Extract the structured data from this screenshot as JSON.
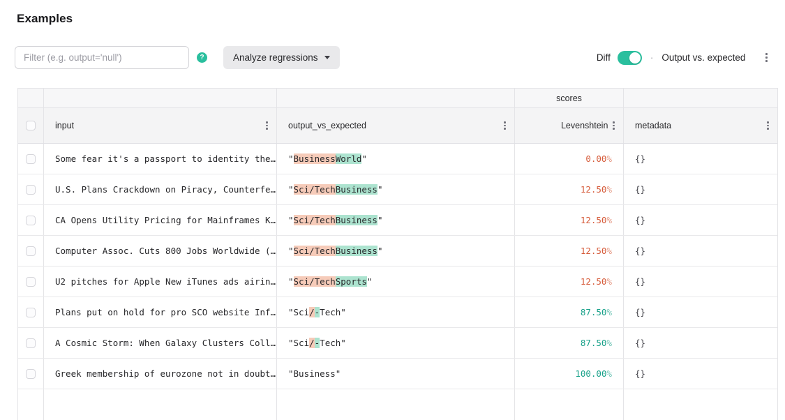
{
  "page": {
    "title": "Examples"
  },
  "toolbar": {
    "filter_placeholder": "Filter (e.g. output='null')",
    "help_glyph": "?",
    "analyze_button_label": "Analyze regressions",
    "diff_label": "Diff",
    "diff_toggle_on": true,
    "separator": "·",
    "view_label": "Output vs. expected"
  },
  "colors": {
    "accent": "#2abf9e",
    "score_low": "#d65b3a",
    "score_high": "#18a189",
    "removed_bg": "#f6cbb9",
    "added_bg": "#ace3cf"
  },
  "table": {
    "group_header": {
      "scores_label": "scores"
    },
    "columns": [
      {
        "key": "input",
        "label": "input"
      },
      {
        "key": "output_vs_expected",
        "label": "output_vs_expected"
      },
      {
        "key": "levenshtein",
        "label": "Levenshtein",
        "group": "scores"
      },
      {
        "key": "metadata",
        "label": "metadata"
      }
    ],
    "has_partial_row": true,
    "rows": [
      {
        "input": "Some fear it's a passport to identity the…",
        "output_segments": [
          {
            "t": "\"",
            "k": "plain"
          },
          {
            "t": "Business",
            "k": "removed"
          },
          {
            "t": "World",
            "k": "added"
          },
          {
            "t": "\"",
            "k": "plain"
          }
        ],
        "score": {
          "value": "0.00",
          "unit": "%",
          "kind": "low"
        },
        "metadata": "{}"
      },
      {
        "input": "U.S. Plans Crackdown on Piracy, Counterfe…",
        "output_segments": [
          {
            "t": "\"",
            "k": "plain"
          },
          {
            "t": "Sci/Tech",
            "k": "removed"
          },
          {
            "t": "Business",
            "k": "added"
          },
          {
            "t": "\"",
            "k": "plain"
          }
        ],
        "score": {
          "value": "12.50",
          "unit": "%",
          "kind": "low"
        },
        "metadata": "{}"
      },
      {
        "input": "CA Opens Utility Pricing for Mainframes K…",
        "output_segments": [
          {
            "t": "\"",
            "k": "plain"
          },
          {
            "t": "Sci/Tech",
            "k": "removed"
          },
          {
            "t": "Business",
            "k": "added"
          },
          {
            "t": "\"",
            "k": "plain"
          }
        ],
        "score": {
          "value": "12.50",
          "unit": "%",
          "kind": "low"
        },
        "metadata": "{}"
      },
      {
        "input": "Computer Assoc. Cuts 800 Jobs Worldwide (…",
        "output_segments": [
          {
            "t": "\"",
            "k": "plain"
          },
          {
            "t": "Sci/Tech",
            "k": "removed"
          },
          {
            "t": "Business",
            "k": "added"
          },
          {
            "t": "\"",
            "k": "plain"
          }
        ],
        "score": {
          "value": "12.50",
          "unit": "%",
          "kind": "low"
        },
        "metadata": "{}"
      },
      {
        "input": "U2 pitches for Apple New iTunes ads airin…",
        "output_segments": [
          {
            "t": "\"",
            "k": "plain"
          },
          {
            "t": "Sci/Tech",
            "k": "removed"
          },
          {
            "t": "Sports",
            "k": "added"
          },
          {
            "t": "\"",
            "k": "plain"
          }
        ],
        "score": {
          "value": "12.50",
          "unit": "%",
          "kind": "low"
        },
        "metadata": "{}"
      },
      {
        "input": "Plans put on hold for pro SCO website Inf…",
        "output_segments": [
          {
            "t": "\"Sci",
            "k": "plain"
          },
          {
            "t": "/",
            "k": "removed"
          },
          {
            "t": "-",
            "k": "added"
          },
          {
            "t": "Tech\"",
            "k": "plain"
          }
        ],
        "score": {
          "value": "87.50",
          "unit": "%",
          "kind": "high"
        },
        "metadata": "{}"
      },
      {
        "input": "A Cosmic Storm: When Galaxy Clusters Coll…",
        "output_segments": [
          {
            "t": "\"Sci",
            "k": "plain"
          },
          {
            "t": "/",
            "k": "removed"
          },
          {
            "t": "-",
            "k": "added"
          },
          {
            "t": "Tech\"",
            "k": "plain"
          }
        ],
        "score": {
          "value": "87.50",
          "unit": "%",
          "kind": "high"
        },
        "metadata": "{}"
      },
      {
        "input": "Greek membership of eurozone not in doubt…",
        "output_segments": [
          {
            "t": "\"Business\"",
            "k": "plain"
          }
        ],
        "score": {
          "value": "100.00",
          "unit": "%",
          "kind": "high"
        },
        "metadata": "{}"
      }
    ]
  }
}
